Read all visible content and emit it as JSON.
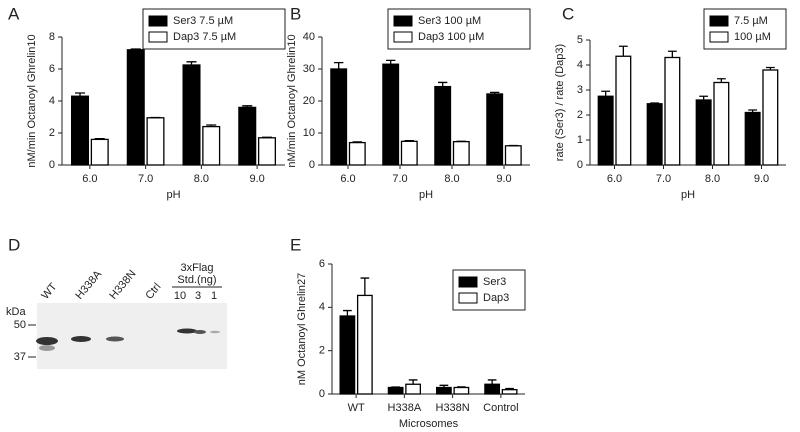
{
  "chart_data": [
    {
      "panel": "A",
      "type": "bar",
      "categories": [
        "6.0",
        "7.0",
        "8.0",
        "9.0"
      ],
      "xlabel": "pH",
      "ylabel": "nM/min Octanoyl Ghrelin10",
      "ylim": [
        0,
        8
      ],
      "yticks": [
        0,
        2,
        4,
        6,
        8
      ],
      "legend": "upper right",
      "series": [
        {
          "name": "Ser3  7.5 µM",
          "color": "#000000",
          "values": [
            4.3,
            7.2,
            6.25,
            3.6
          ],
          "errors": [
            0.2,
            0.05,
            0.2,
            0.1
          ]
        },
        {
          "name": "Dap3  7.5 µM",
          "color": "#ffffff",
          "values": [
            1.6,
            2.95,
            2.4,
            1.7
          ],
          "errors": [
            0.05,
            0.02,
            0.1,
            0.03
          ]
        }
      ]
    },
    {
      "panel": "B",
      "type": "bar",
      "categories": [
        "6.0",
        "7.0",
        "8.0",
        "9.0"
      ],
      "xlabel": "pH",
      "ylabel": "nM/min Octanoyl Ghrelin10",
      "ylim": [
        0,
        40
      ],
      "yticks": [
        0,
        10,
        20,
        30,
        40
      ],
      "legend": "upper right",
      "series": [
        {
          "name": "Ser3  100 µM",
          "color": "#000000",
          "values": [
            30,
            31.5,
            24.5,
            22.2
          ],
          "errors": [
            2,
            1.2,
            1.3,
            0.5
          ]
        },
        {
          "name": "Dap3  100 µM",
          "color": "#ffffff",
          "values": [
            7,
            7.4,
            7.3,
            6
          ],
          "errors": [
            0.2,
            0.2,
            0.1,
            0.1
          ]
        }
      ]
    },
    {
      "panel": "C",
      "type": "bar",
      "categories": [
        "6.0",
        "7.0",
        "8.0",
        "9.0"
      ],
      "xlabel": "pH",
      "ylabel": "rate (Ser3) / rate (Dap3)",
      "ylim": [
        0,
        5
      ],
      "yticks": [
        0,
        1,
        2,
        3,
        4,
        5
      ],
      "legend": "upper right",
      "series": [
        {
          "name": "7.5 µM",
          "color": "#000000",
          "values": [
            2.75,
            2.45,
            2.6,
            2.1
          ],
          "errors": [
            0.2,
            0.03,
            0.15,
            0.1
          ]
        },
        {
          "name": "100 µM",
          "color": "#ffffff",
          "values": [
            4.35,
            4.3,
            3.3,
            3.8
          ],
          "errors": [
            0.4,
            0.25,
            0.15,
            0.1
          ]
        }
      ]
    },
    {
      "panel": "E",
      "type": "bar",
      "categories": [
        "WT",
        "H338A",
        "H338N",
        "Control"
      ],
      "xlabel": "Microsomes",
      "ylabel": "nM Octanoyl Ghrelin27",
      "ylim": [
        0,
        6
      ],
      "yticks": [
        0,
        2,
        4,
        6
      ],
      "legend": "upper right",
      "series": [
        {
          "name": "Ser3",
          "color": "#000000",
          "values": [
            3.6,
            0.3,
            0.3,
            0.45
          ],
          "errors": [
            0.25,
            0.02,
            0.1,
            0.2
          ]
        },
        {
          "name": "Dap3",
          "color": "#ffffff",
          "values": [
            4.55,
            0.45,
            0.3,
            0.2
          ],
          "errors": [
            0.8,
            0.2,
            0.03,
            0.05
          ]
        }
      ]
    }
  ],
  "blot": {
    "panel": "D",
    "lanes": [
      "WT",
      "H338A",
      "H338N",
      "Ctrl"
    ],
    "standard_label": [
      "3xFlag",
      "Std.(ng)"
    ],
    "standard_lanes": [
      "10",
      "3",
      "1"
    ],
    "unit": "kDa",
    "markers": [
      "50",
      "37"
    ]
  }
}
